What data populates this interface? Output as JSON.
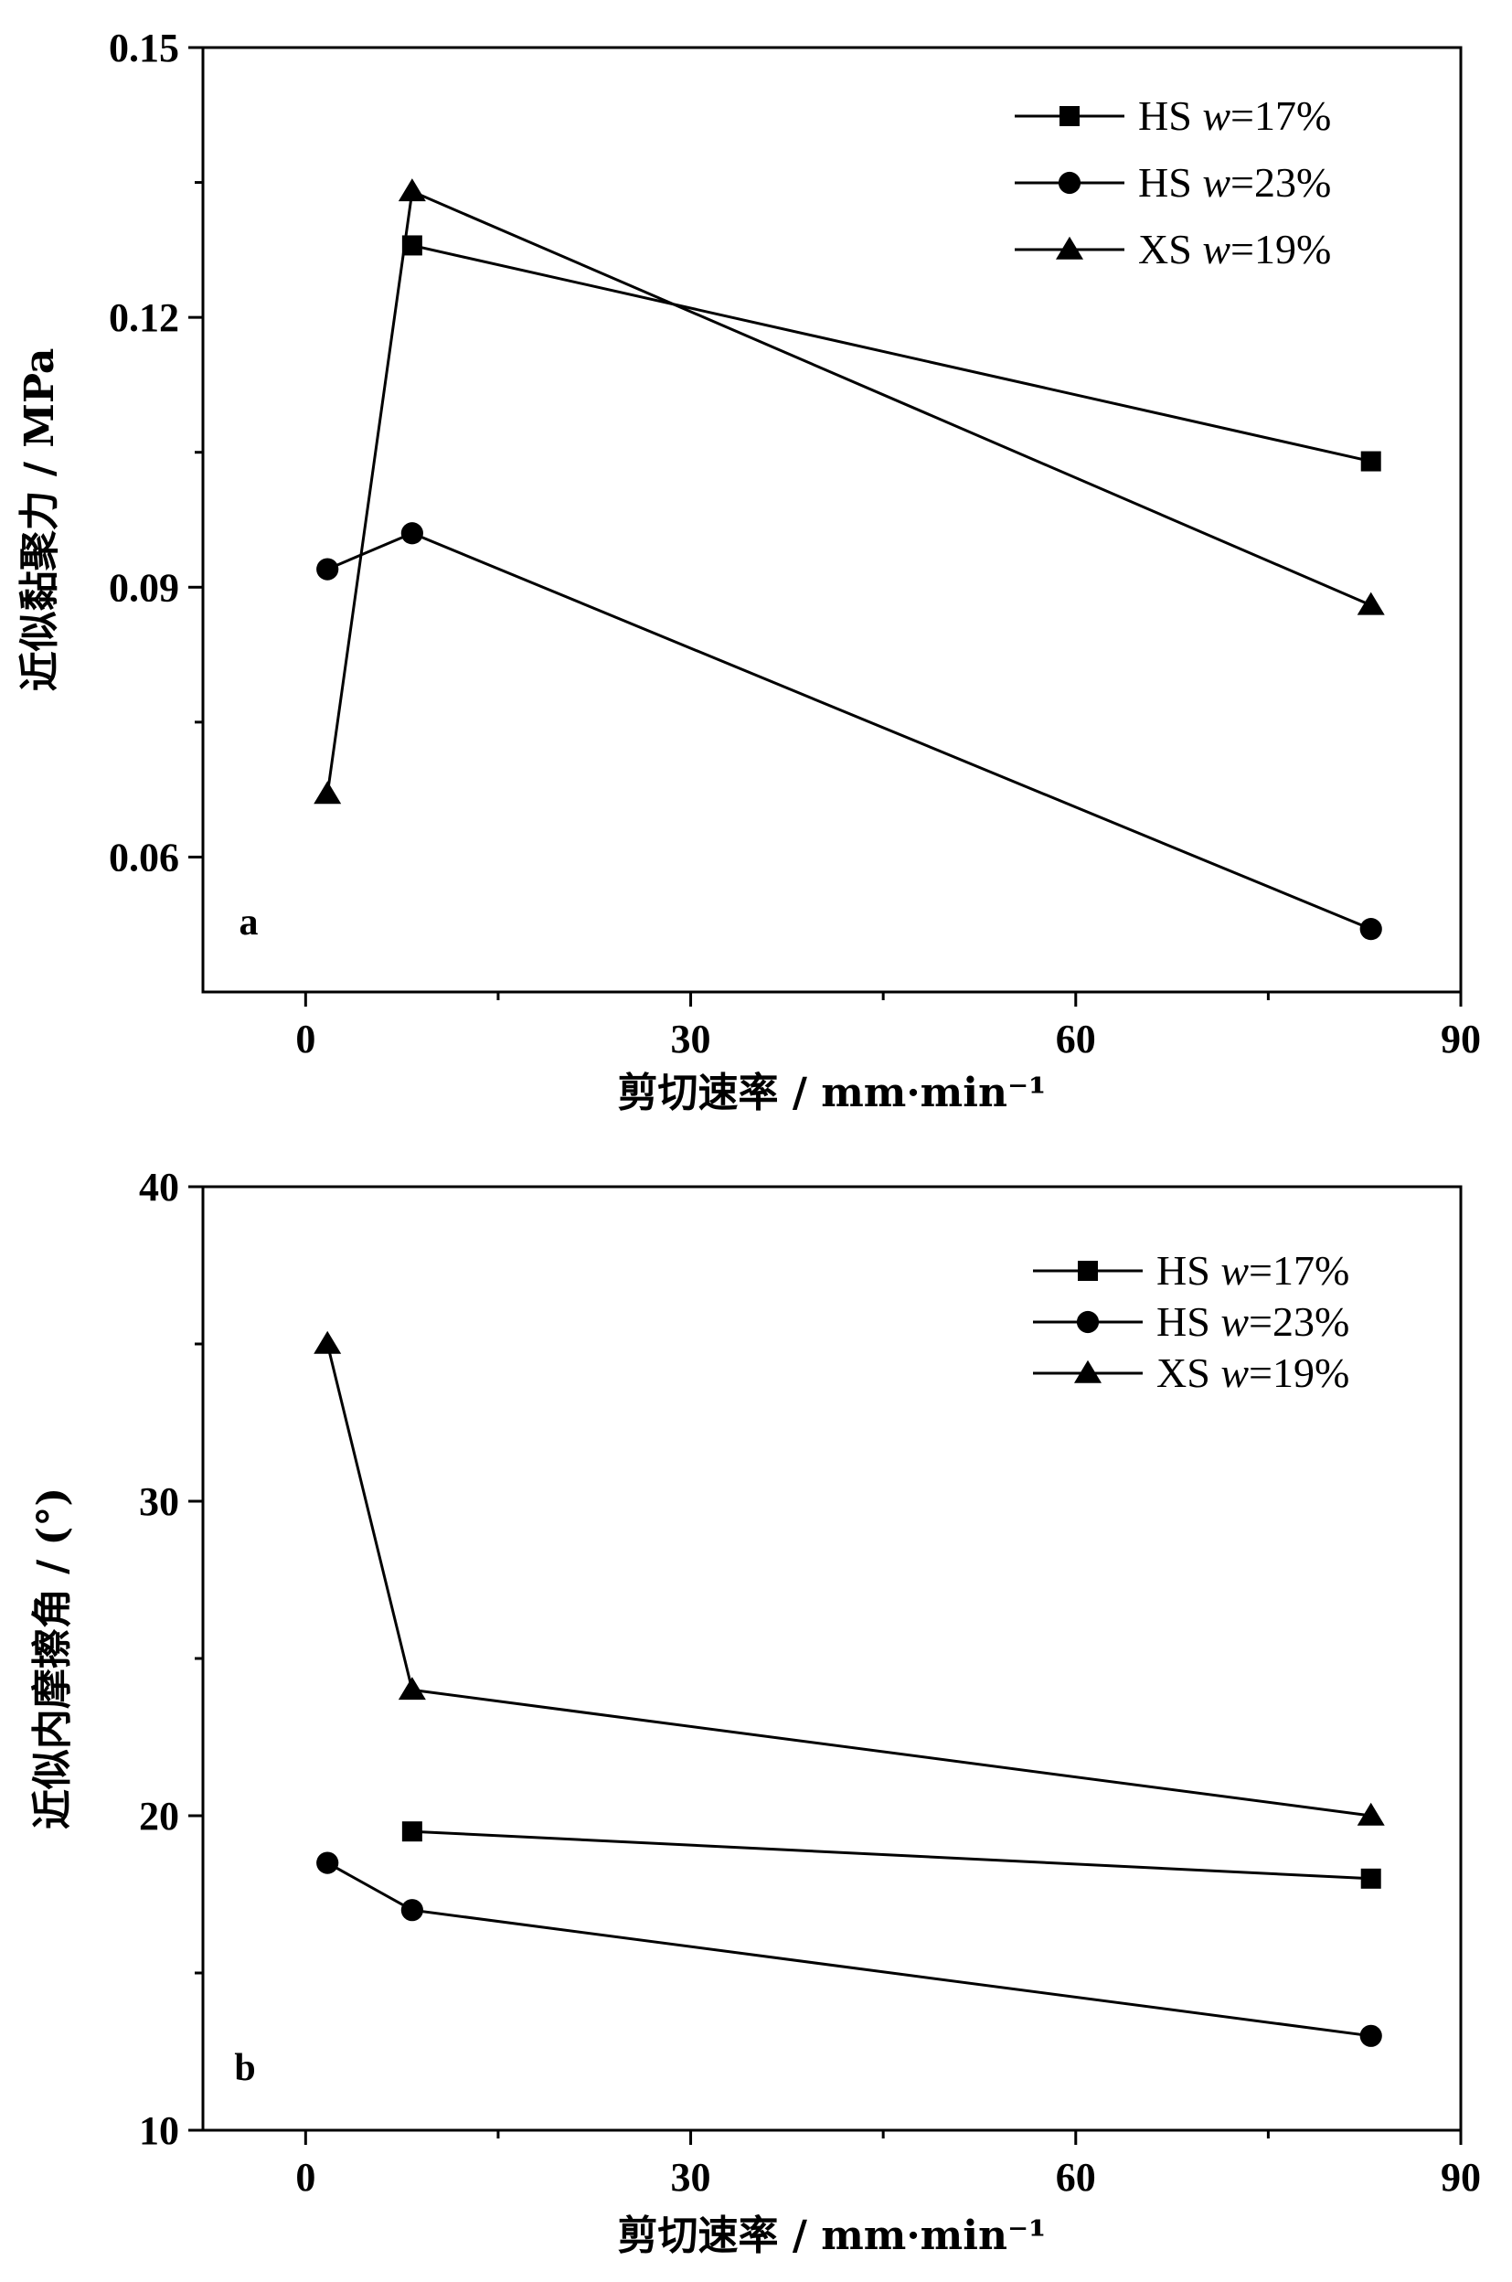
{
  "chart_data": [
    {
      "type": "line",
      "panel_label": "a",
      "xlabel": "剪切速率 / mm·min⁻¹",
      "ylabel": "近似黏聚力 / MPa",
      "xlim": [
        -8,
        90
      ],
      "ylim": [
        0.045,
        0.15
      ],
      "x_ticks": [
        0,
        30,
        60,
        90
      ],
      "x_tick_labels": [
        "0",
        "30",
        "60",
        "90"
      ],
      "y_ticks": [
        0.06,
        0.09,
        0.12,
        0.15
      ],
      "y_tick_labels": [
        "0.06",
        "0.09",
        "0.12",
        "0.15"
      ],
      "x_minor_ticks": [
        15,
        45,
        75
      ],
      "y_minor_ticks": [
        0.075,
        0.105,
        0.135
      ],
      "legend_position": "top-right",
      "grid": false,
      "series": [
        {
          "name": "HS w=17%",
          "name_prefix": "HS ",
          "name_italic": "w",
          "name_suffix": "=17%",
          "marker": "square",
          "x": [
            8.3,
            83
          ],
          "y": [
            0.128,
            0.104
          ]
        },
        {
          "name": "HS w=23%",
          "name_prefix": "HS ",
          "name_italic": "w",
          "name_suffix": "=23%",
          "marker": "circle",
          "x": [
            1.7,
            8.3,
            83
          ],
          "y": [
            0.092,
            0.096,
            0.052
          ]
        },
        {
          "name": "XS w=19%",
          "name_prefix": "XS ",
          "name_italic": "w",
          "name_suffix": "=19%",
          "marker": "triangle",
          "x": [
            1.7,
            8.3,
            83
          ],
          "y": [
            0.067,
            0.134,
            0.088
          ]
        }
      ]
    },
    {
      "type": "line",
      "panel_label": "b",
      "xlabel": "剪切速率 / mm·min⁻¹",
      "ylabel": "近似内摩擦角 / (°)",
      "xlim": [
        -8,
        90
      ],
      "ylim": [
        10,
        40
      ],
      "x_ticks": [
        0,
        30,
        60,
        90
      ],
      "x_tick_labels": [
        "0",
        "30",
        "60",
        "90"
      ],
      "y_ticks": [
        10,
        20,
        30,
        40
      ],
      "y_tick_labels": [
        "10",
        "20",
        "30",
        "40"
      ],
      "x_minor_ticks": [
        15,
        45,
        75
      ],
      "y_minor_ticks": [
        15,
        25,
        35
      ],
      "legend_position": "top-right",
      "grid": false,
      "series": [
        {
          "name": "HS w=17%",
          "name_prefix": "HS ",
          "name_italic": "w",
          "name_suffix": "=17%",
          "marker": "square",
          "x": [
            8.3,
            83
          ],
          "y": [
            19.5,
            18.0
          ]
        },
        {
          "name": "HS w=23%",
          "name_prefix": "HS ",
          "name_italic": "w",
          "name_suffix": "=23%",
          "marker": "circle",
          "x": [
            1.7,
            8.3,
            83
          ],
          "y": [
            18.5,
            17.0,
            13.0
          ]
        },
        {
          "name": "XS w=19%",
          "name_prefix": "XS ",
          "name_italic": "w",
          "name_suffix": "=19%",
          "marker": "triangle",
          "x": [
            1.7,
            8.3,
            83
          ],
          "y": [
            35.0,
            24.0,
            20.0
          ]
        }
      ]
    }
  ]
}
